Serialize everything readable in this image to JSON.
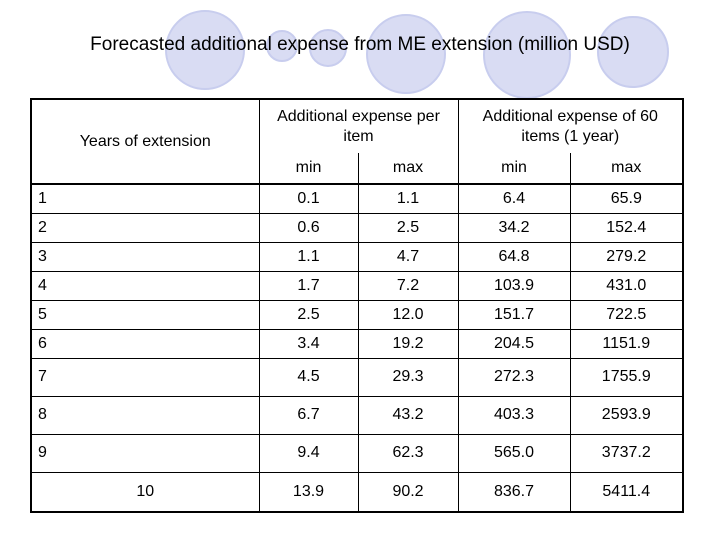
{
  "title": "Forecasted additional expense from ME extension (million USD)",
  "table": {
    "headers": {
      "years": "Years of extension",
      "per_item": "Additional expense per item",
      "sixty_items": "Additional expense  of 60 items (1 year)",
      "min_1": "min",
      "max_1": "max",
      "min_2": "min",
      "max_2": "max"
    },
    "rows": [
      [
        "1",
        "0.1",
        "1.1",
        "6.4",
        "65.9"
      ],
      [
        "2",
        "0.6",
        "2.5",
        "34.2",
        "152.4"
      ],
      [
        "3",
        "1.1",
        "4.7",
        "64.8",
        "279.2"
      ],
      [
        "4",
        "1.7",
        "7.2",
        "103.9",
        "431.0"
      ],
      [
        "5",
        "2.5",
        "12.0",
        "151.7",
        "722.5"
      ],
      [
        "6",
        "3.4",
        "19.2",
        "204.5",
        "1151.9"
      ],
      [
        "7",
        "4.5",
        "29.3",
        "272.3",
        "1755.9"
      ],
      [
        "8",
        "6.7",
        "43.2",
        "403.3",
        "2593.9"
      ],
      [
        "9",
        "9.4",
        "62.3",
        "565.0",
        "3737.2"
      ],
      [
        "10",
        "13.9",
        "90.2",
        "836.7",
        "5411.4"
      ]
    ]
  },
  "colors": {
    "circle_fill": "#d9dcf3",
    "circle_stroke": "#c8cdee",
    "border": "#000000"
  }
}
